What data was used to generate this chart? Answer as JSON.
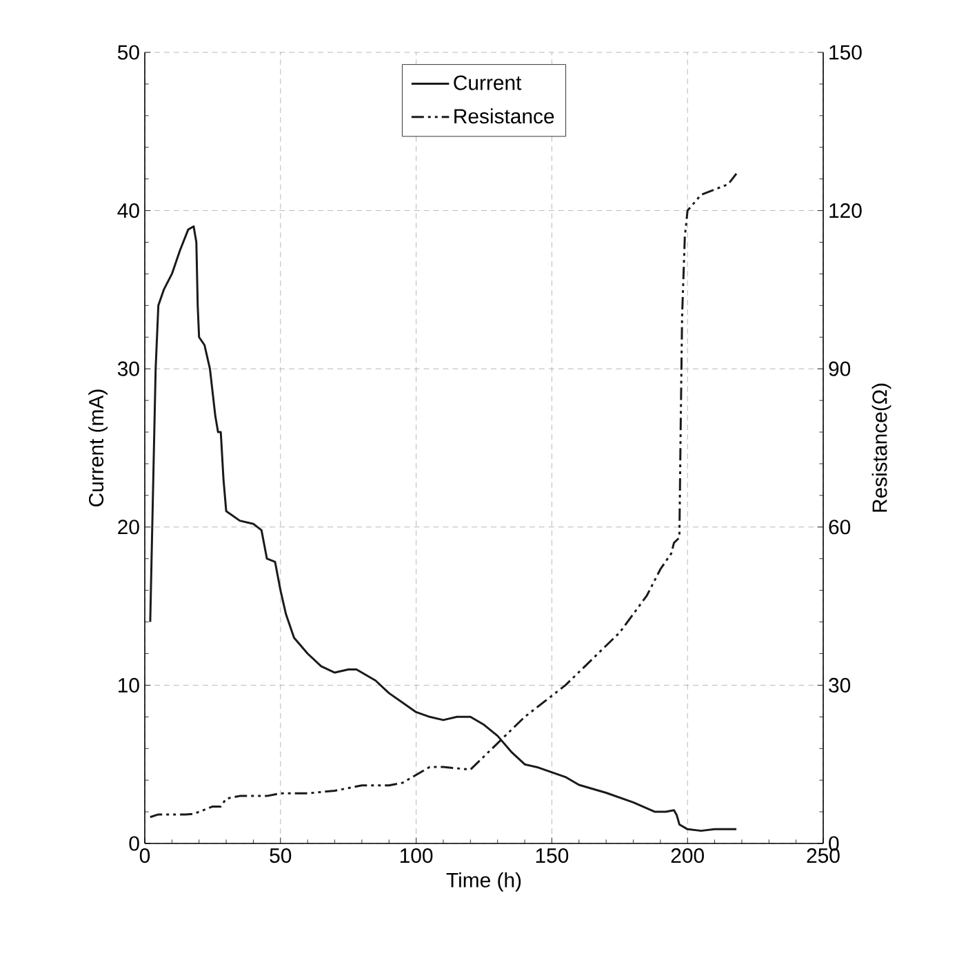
{
  "chart_data": {
    "type": "line",
    "xlabel": "Time (h)",
    "ylabel": "Current (mA)",
    "y2label": "Resistance(Ω)",
    "xlim": [
      0,
      250
    ],
    "xticks": [
      0,
      50,
      100,
      150,
      200,
      250
    ],
    "ylim": [
      0,
      50
    ],
    "yticks": [
      0,
      10,
      20,
      30,
      40,
      50
    ],
    "y2lim": [
      0,
      150
    ],
    "y2ticks": [
      0,
      30,
      60,
      90,
      120,
      150
    ],
    "grid": true,
    "legend": "top",
    "marker": "none",
    "series": [
      {
        "name": "Current",
        "color": "#1a1a1a",
        "line_style": "solid",
        "axis": "y",
        "x": [
          2,
          3,
          4,
          5,
          7,
          10,
          13,
          16,
          18,
          19,
          19.5,
          20,
          22,
          24,
          26,
          27,
          28,
          29,
          30,
          35,
          40,
          43,
          45,
          48,
          50,
          52,
          55,
          60,
          65,
          70,
          75,
          78,
          85,
          90,
          100,
          105,
          110,
          115,
          120,
          125,
          130,
          135,
          140,
          145,
          150,
          155,
          160,
          170,
          180,
          188,
          192,
          195,
          196,
          197,
          200,
          205,
          210,
          218
        ],
        "values": [
          14,
          22,
          30,
          34,
          35,
          36,
          37.5,
          38.8,
          39,
          38,
          34,
          32,
          31.5,
          30,
          27,
          26,
          26,
          23,
          21,
          20.4,
          20.2,
          19.8,
          18,
          17.8,
          16,
          14.5,
          13,
          12,
          11.2,
          10.8,
          11,
          11,
          10.3,
          9.5,
          8.3,
          8,
          7.8,
          8,
          8,
          7.5,
          6.8,
          5.8,
          5,
          4.8,
          4.5,
          4.2,
          3.7,
          3.2,
          2.6,
          2,
          2,
          2.1,
          1.8,
          1.2,
          0.9,
          0.8,
          0.9,
          0.9
        ]
      },
      {
        "name": "Resistance",
        "color": "#1a1a1a",
        "line_style": "dashed",
        "axis": "y2",
        "x": [
          2,
          5,
          15,
          18,
          20,
          25,
          28,
          30,
          35,
          40,
          45,
          50,
          60,
          70,
          80,
          90,
          95,
          100,
          105,
          110,
          120,
          122,
          125,
          130,
          140,
          150,
          155,
          165,
          175,
          185,
          190,
          194,
          195,
          197,
          197.5,
          198,
          199,
          200,
          205,
          210,
          215,
          218
        ],
        "values": [
          5,
          5.5,
          5.5,
          5.6,
          6,
          7,
          7,
          8.5,
          9,
          9,
          9,
          9.5,
          9.5,
          10,
          11,
          11,
          11.5,
          13,
          14.5,
          14.5,
          14,
          15,
          16.5,
          19,
          24,
          28,
          30,
          35,
          40,
          47,
          52,
          55,
          57,
          58,
          80,
          100,
          115,
          120,
          123,
          124,
          125,
          127
        ]
      }
    ]
  }
}
